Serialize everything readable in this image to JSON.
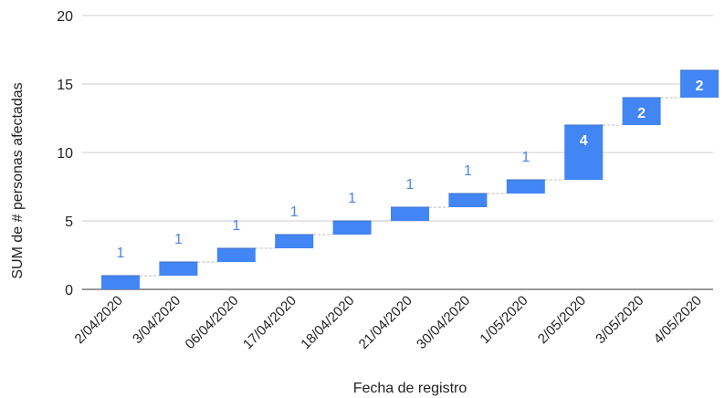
{
  "chart_data": {
    "type": "waterfall",
    "xlabel": "Fecha de registro",
    "ylabel": "SUM de # personas afectadas",
    "ylim": [
      0,
      20
    ],
    "yticks": [
      0,
      5,
      10,
      15,
      20
    ],
    "grid": true,
    "categories": [
      "2/04/2020",
      "3/04/2020",
      "06/04/2020",
      "17/04/2020",
      "18/04/2020",
      "21/04/2020",
      "30/04/2020",
      "1/05/2020",
      "2/05/2020",
      "3/05/2020",
      "4/05/2020"
    ],
    "values": [
      1,
      1,
      1,
      1,
      1,
      1,
      1,
      1,
      4,
      2,
      2
    ],
    "bar_color": "#4285f4",
    "label_color_outside": "#4a86e8",
    "label_color_inside": "#ffffff"
  }
}
